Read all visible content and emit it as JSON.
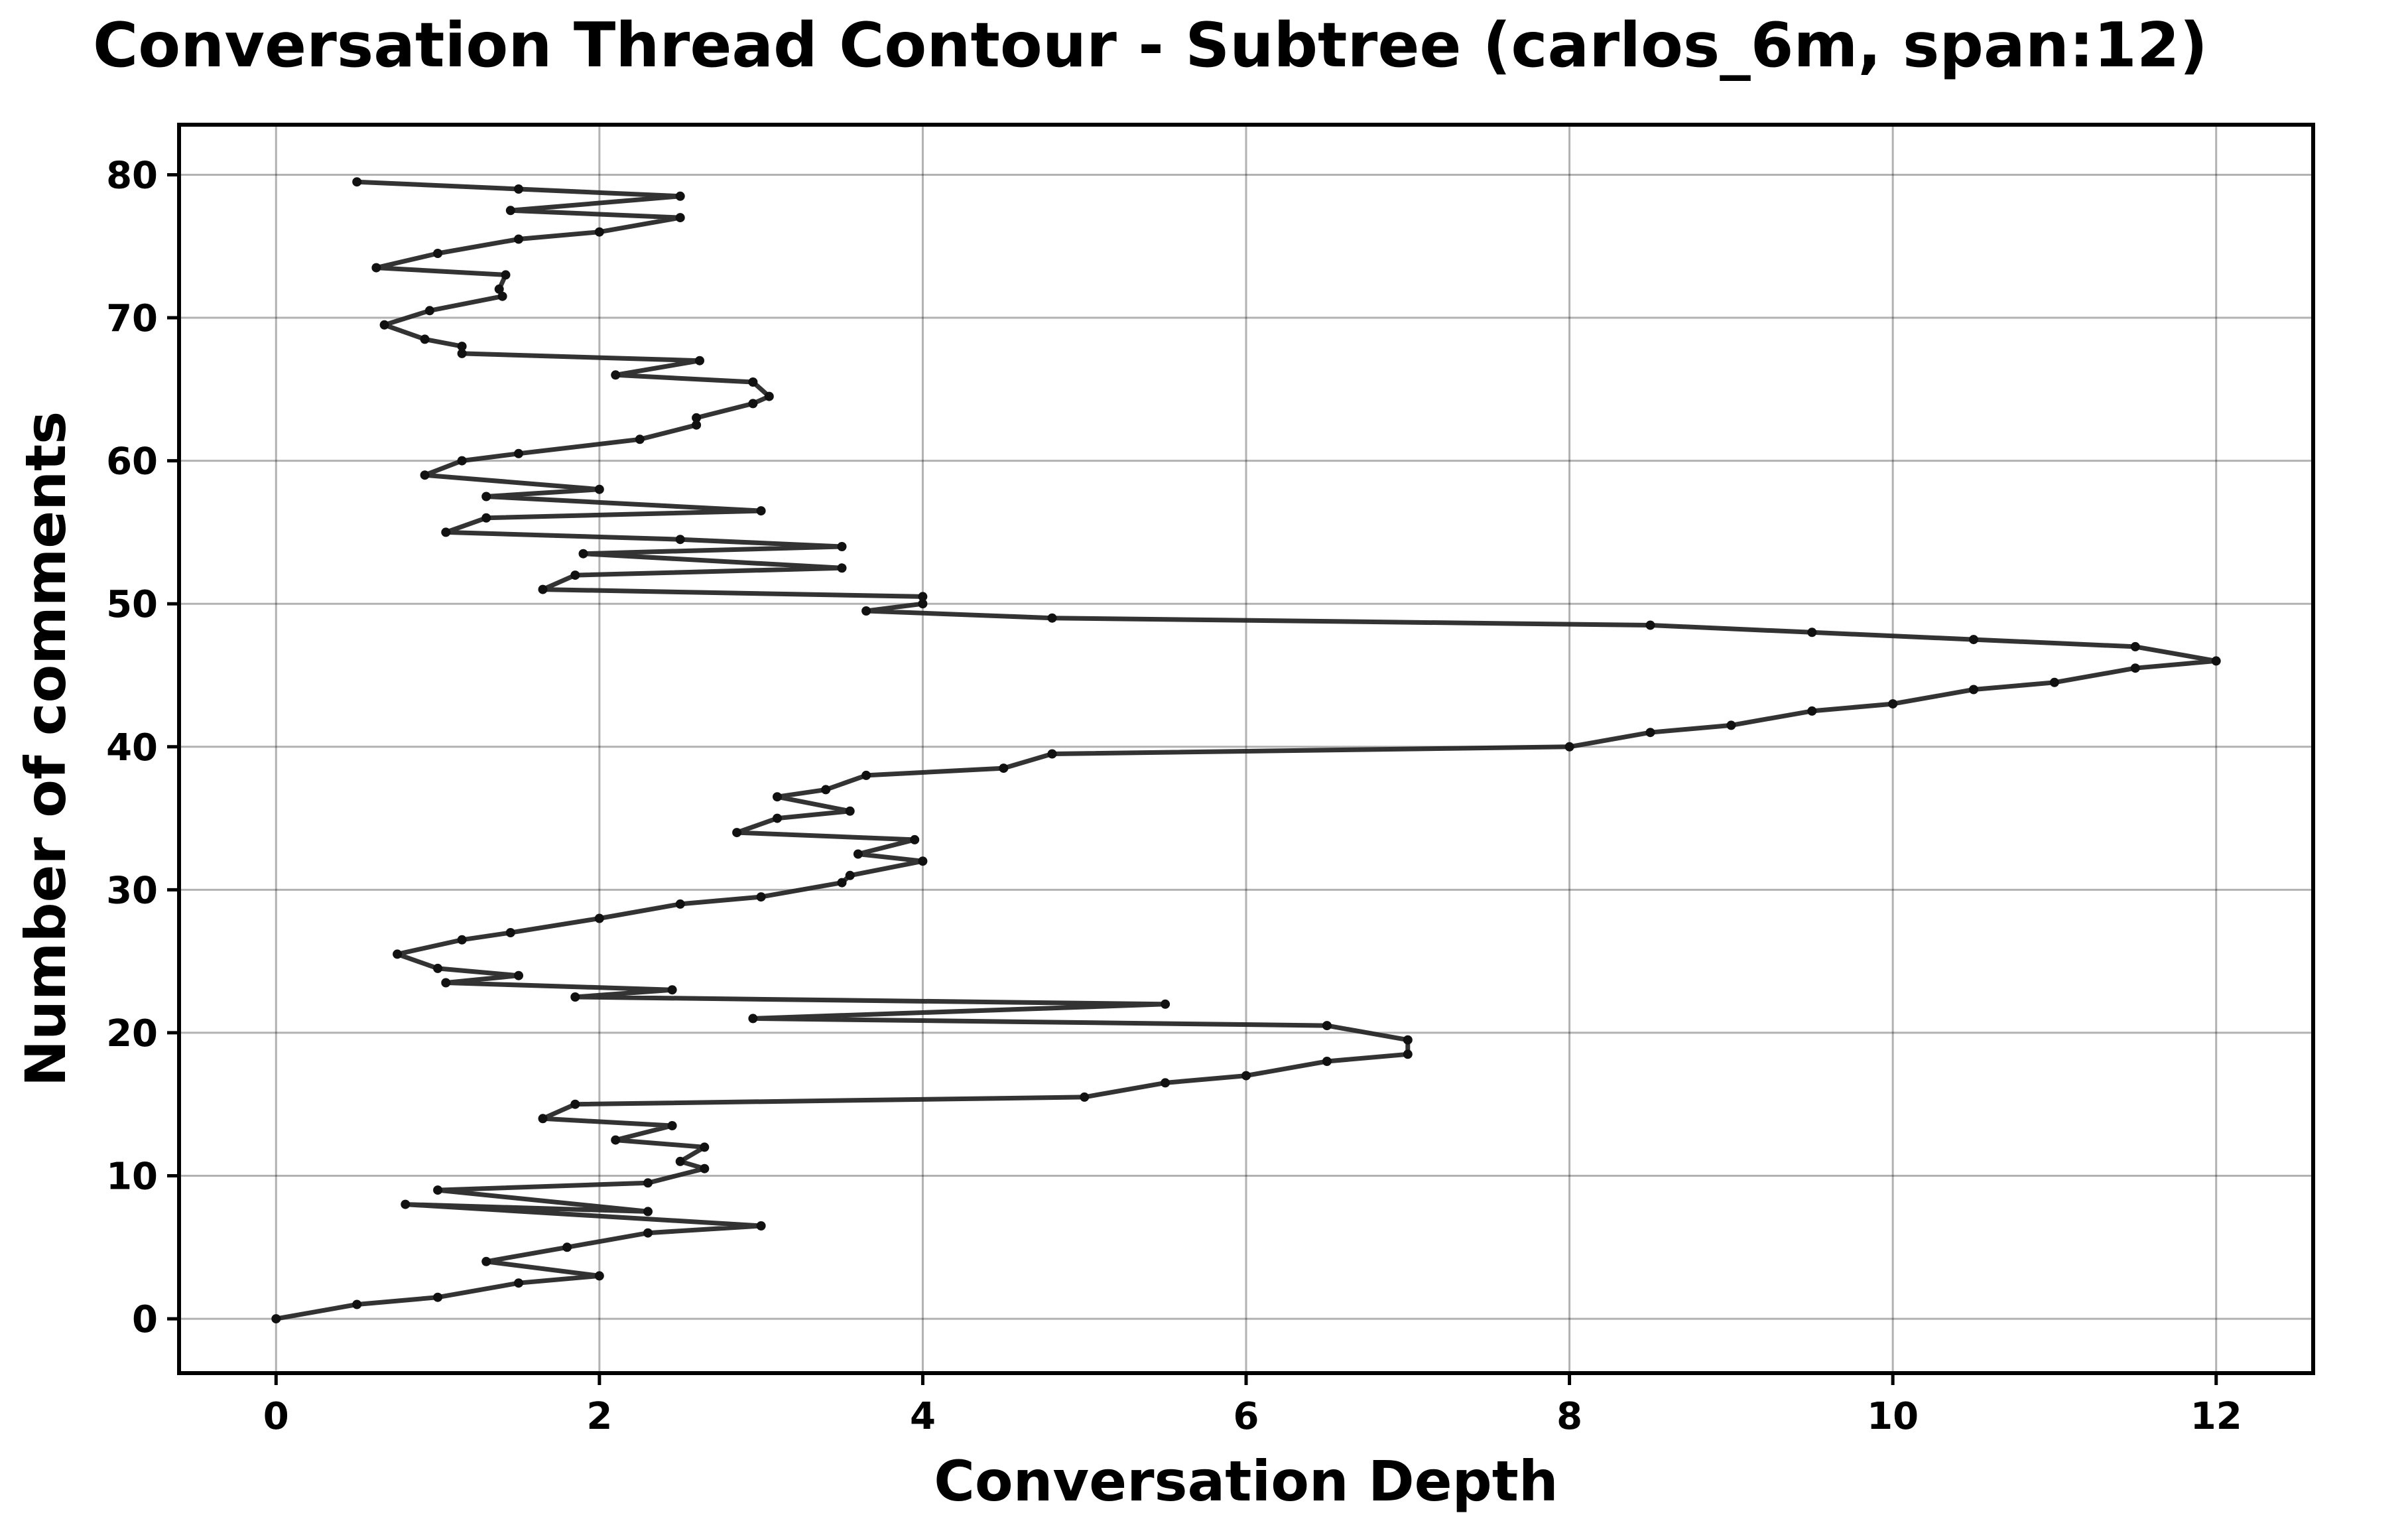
{
  "chart_data": {
    "type": "line",
    "title": "Conversation Thread Contour  - Subtree (carlos_6m, span:12)",
    "xlabel": "Conversation Depth",
    "ylabel": "Number of comments",
    "xlim": [
      -0.6,
      12.6
    ],
    "ylim": [
      -3.8,
      83.5
    ],
    "xticks": [
      0,
      2,
      4,
      6,
      8,
      10,
      12
    ],
    "yticks": [
      0,
      10,
      20,
      30,
      40,
      50,
      60,
      70,
      80
    ],
    "grid": true,
    "line_color": "#222222",
    "series": [
      {
        "x": [
          0,
          0.5,
          1.0,
          1.5,
          2.0,
          1.3,
          1.8,
          2.3,
          3.0,
          0.8,
          2.3,
          1.0,
          2.3,
          2.65,
          2.5,
          2.65,
          2.1,
          2.45,
          1.65,
          1.85,
          5.0,
          5.5,
          6.0,
          6.5,
          7.0,
          7.0,
          6.5,
          2.95,
          5.5,
          1.85,
          2.45,
          1.05,
          1.5,
          1.0,
          0.75,
          1.15,
          1.45,
          2.0,
          2.5,
          3.0,
          3.5,
          3.55,
          4.0,
          3.6,
          3.95,
          2.85,
          3.1,
          3.55,
          3.1,
          3.4,
          3.65,
          4.5,
          4.8,
          8.0,
          8.5,
          9.0,
          9.5,
          10.0,
          10.5,
          11.0,
          11.5,
          12.0,
          11.5,
          10.5,
          9.5,
          8.5,
          4.8,
          3.65,
          4.0,
          4.0,
          1.65,
          1.85,
          3.5,
          1.9,
          3.5,
          2.5,
          1.05,
          1.3,
          3.0,
          1.3,
          2.0,
          0.92,
          1.15,
          1.5,
          2.25,
          2.6,
          2.6,
          2.95,
          3.05,
          2.95,
          2.1,
          2.62,
          1.15,
          1.15,
          0.92,
          0.67,
          0.95,
          1.4,
          1.38,
          1.42,
          0.62,
          1.0,
          1.5,
          2.0,
          2.5,
          1.45,
          2.5,
          1.5,
          0.5
        ],
        "y": [
          0,
          1.0,
          1.5,
          2.5,
          3.0,
          4.0,
          5.0,
          6.0,
          6.5,
          8.0,
          7.5,
          9.0,
          9.5,
          10.5,
          11.0,
          12.0,
          12.5,
          13.5,
          14.0,
          15.0,
          15.5,
          16.5,
          17.0,
          18.0,
          18.5,
          19.5,
          20.5,
          21.0,
          22.0,
          22.5,
          23.0,
          23.5,
          24.0,
          24.5,
          25.5,
          26.5,
          27.0,
          28.0,
          29.0,
          29.5,
          30.5,
          31.0,
          32.0,
          32.5,
          33.5,
          34.0,
          35.0,
          35.5,
          36.5,
          37.0,
          38.0,
          38.5,
          39.5,
          40.0,
          41.0,
          41.5,
          42.5,
          43.0,
          44.0,
          44.5,
          45.5,
          46.0,
          47.0,
          47.5,
          48.0,
          48.5,
          49.0,
          49.5,
          50.0,
          50.5,
          51.0,
          52.0,
          52.5,
          53.5,
          54.0,
          54.5,
          55.0,
          56.0,
          56.5,
          57.5,
          58.0,
          59.0,
          60.0,
          60.5,
          61.5,
          62.5,
          63.0,
          64.0,
          64.5,
          65.5,
          66.0,
          67.0,
          67.5,
          68.0,
          68.5,
          69.5,
          70.5,
          71.5,
          72.0,
          73.0,
          73.5,
          74.5,
          75.5,
          76.0,
          77.0,
          77.5,
          78.5,
          79.0,
          79.5
        ]
      }
    ]
  }
}
